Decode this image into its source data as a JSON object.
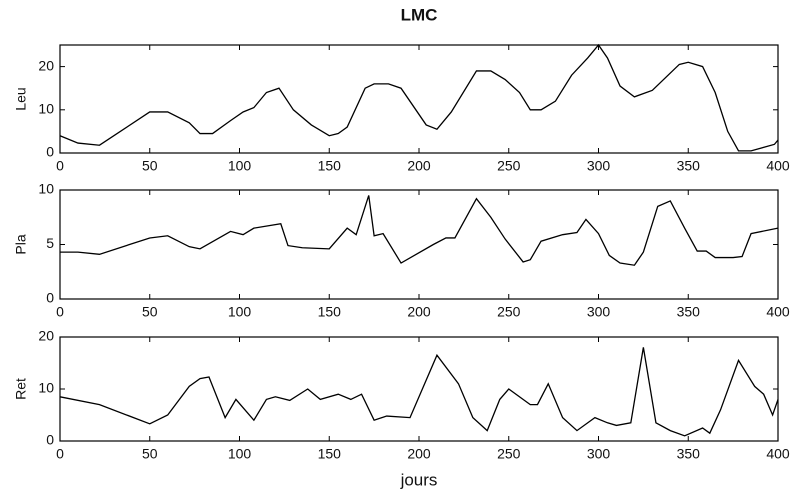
{
  "chart_data": [
    {
      "type": "line",
      "title": "LMC",
      "y_label": "Leu",
      "color": "#000000",
      "x": [
        0,
        10,
        22,
        50,
        60,
        72,
        78,
        85,
        95,
        102,
        108,
        115,
        122,
        130,
        140,
        150,
        155,
        160,
        170,
        175,
        183,
        190,
        204,
        210,
        218,
        232,
        240,
        248,
        256,
        262,
        268,
        276,
        285,
        294,
        300,
        305,
        312,
        320,
        330,
        345,
        350,
        358,
        365,
        372,
        378,
        385,
        398,
        400
      ],
      "values": [
        4,
        2.3,
        1.8,
        9.5,
        9.5,
        7,
        4.5,
        4.5,
        7.5,
        9.5,
        10.5,
        14,
        15,
        10,
        6.5,
        4,
        4.5,
        6,
        15,
        16,
        16,
        15,
        6.5,
        5.5,
        9.5,
        19,
        19,
        17,
        14,
        10,
        10,
        12,
        18,
        22,
        25,
        22,
        15.5,
        13,
        14.5,
        20.5,
        21,
        20,
        14,
        5,
        0.5,
        0.5,
        2,
        3
      ],
      "xlim": [
        0,
        400
      ],
      "xticks": [
        0,
        50,
        100,
        150,
        200,
        250,
        300,
        350,
        400
      ],
      "ylim": [
        0,
        25
      ],
      "yticks": [
        0,
        10,
        20
      ]
    },
    {
      "type": "line",
      "y_label": "Pla",
      "color": "#000000",
      "x": [
        0,
        10,
        22,
        50,
        60,
        72,
        78,
        95,
        102,
        108,
        123,
        127,
        135,
        150,
        160,
        165,
        172,
        175,
        180,
        190,
        208,
        215,
        220,
        232,
        240,
        248,
        258,
        262,
        268,
        280,
        288,
        293,
        300,
        306,
        312,
        320,
        325,
        333,
        340,
        348,
        355,
        360,
        365,
        375,
        380,
        385,
        400
      ],
      "values": [
        4.3,
        4.3,
        4.1,
        5.6,
        5.8,
        4.8,
        4.6,
        6.2,
        5.9,
        6.5,
        6.9,
        4.9,
        4.7,
        4.6,
        6.5,
        5.9,
        9.5,
        5.8,
        6,
        3.3,
        5,
        5.6,
        5.6,
        9.2,
        7.5,
        5.5,
        3.4,
        3.6,
        5.3,
        5.9,
        6.1,
        7.3,
        6,
        4,
        3.3,
        3.1,
        4.3,
        8.5,
        9,
        6.5,
        4.4,
        4.4,
        3.8,
        3.8,
        3.9,
        6,
        6.5
      ],
      "xlim": [
        0,
        400
      ],
      "xticks": [
        0,
        50,
        100,
        150,
        200,
        250,
        300,
        350,
        400
      ],
      "ylim": [
        0,
        10
      ],
      "yticks": [
        0,
        5,
        10
      ]
    },
    {
      "type": "line",
      "y_label": "Ret",
      "x_label": "jours",
      "color": "#000000",
      "x": [
        0,
        22,
        50,
        60,
        72,
        78,
        83,
        92,
        98,
        108,
        115,
        120,
        128,
        138,
        145,
        155,
        162,
        168,
        175,
        182,
        195,
        210,
        222,
        230,
        238,
        245,
        250,
        262,
        266,
        272,
        280,
        288,
        298,
        305,
        310,
        318,
        325,
        332,
        340,
        348,
        358,
        362,
        368,
        378,
        387,
        392,
        397,
        400
      ],
      "values": [
        8.5,
        7,
        3.3,
        5,
        10.5,
        12,
        12.3,
        4.5,
        8,
        4,
        8,
        8.5,
        7.8,
        10,
        8,
        9,
        8,
        9,
        4,
        4.8,
        4.5,
        16.5,
        11,
        4.5,
        2,
        8,
        10,
        7,
        7,
        11,
        4.5,
        2,
        4.5,
        3.5,
        3,
        3.5,
        18,
        3.5,
        2,
        1,
        2.5,
        1.5,
        6,
        15.5,
        10.5,
        9,
        5,
        8
      ],
      "xlim": [
        0,
        400
      ],
      "xticks": [
        0,
        50,
        100,
        150,
        200,
        250,
        300,
        350,
        400
      ],
      "ylim": [
        0,
        20
      ],
      "yticks": [
        0,
        10,
        20
      ]
    }
  ]
}
